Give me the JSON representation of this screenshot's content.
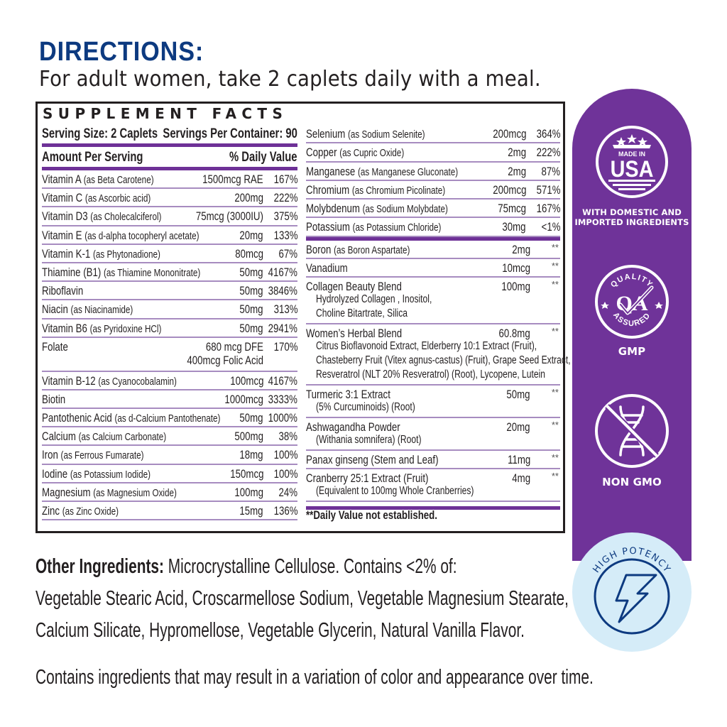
{
  "directions": {
    "title": "DIRECTIONS:",
    "text": "For adult women, take 2 caplets daily with a meal."
  },
  "supplement_facts": {
    "title": "SUPPLEMENT FACTS",
    "serving_size": "Serving Size: 2 Caplets",
    "servings_per_container": "Servings Per Container: 90",
    "amount_per_serving_label": "Amount Per Serving",
    "daily_value_label": "% Daily Value",
    "left_column": [
      {
        "name": "Vitamin A",
        "source": "(as Beta Carotene)",
        "amount": "1500mcg RAE",
        "dv": "167%"
      },
      {
        "name": "Vitamin C",
        "source": "(as Ascorbic acid)",
        "amount": "200mg",
        "dv": "222%"
      },
      {
        "name": "Vitamin D3",
        "source": "(as Cholecalciferol)",
        "amount": "75mcg (3000IU)",
        "dv": "375%"
      },
      {
        "name": "Vitamin E",
        "source": "(as d-alpha tocopheryl acetate)",
        "amount": "20mg",
        "dv": "133%"
      },
      {
        "name": "Vitamin K-1",
        "source": "(as Phytonadione)",
        "amount": "80mcg",
        "dv": "67%"
      },
      {
        "name": "Thiamine (B1)",
        "source": "(as Thiamine Mononitrate)",
        "amount": "50mg",
        "dv": "4167%"
      },
      {
        "name": "Riboflavin",
        "source": "",
        "amount": "50mg",
        "dv": "3846%"
      },
      {
        "name": "Niacin",
        "source": "(as Niacinamide)",
        "amount": "50mg",
        "dv": "313%"
      },
      {
        "name": "Vitamin B6",
        "source": "(as Pyridoxine HCl)",
        "amount": "50mg",
        "dv": "2941%"
      },
      {
        "name": "Folate",
        "source": "",
        "amount": "680 mcg DFE",
        "amount2": "400mcg Folic Acid",
        "dv": "170%"
      },
      {
        "name": "Vitamin B-12",
        "source": "(as Cyanocobalamin)",
        "amount": "100mcg",
        "dv": "4167%"
      },
      {
        "name": "Biotin",
        "source": "",
        "amount": "1000mcg",
        "dv": "3333%"
      },
      {
        "name": "Pantothenic Acid",
        "source": "(as d-Calcium Pantothenate)",
        "amount": "50mg",
        "dv": "1000%"
      },
      {
        "name": "Calcium",
        "source": "(as Calcium Carbonate)",
        "amount": "500mg",
        "dv": "38%"
      },
      {
        "name": "Iron",
        "source": "(as Ferrous Fumarate)",
        "amount": "18mg",
        "dv": "100%"
      },
      {
        "name": "Iodine",
        "source": "(as Potassium Iodide)",
        "amount": "150mcg",
        "dv": "100%"
      },
      {
        "name": "Magnesium",
        "source": "(as Magnesium Oxide)",
        "amount": "100mg",
        "dv": "24%"
      },
      {
        "name": "Zinc",
        "source": "(as Zinc Oxide)",
        "amount": "15mg",
        "dv": "136%"
      }
    ],
    "right_column": [
      {
        "name": "Selenium",
        "source": "(as Sodium Selenite)",
        "amount": "200mcg",
        "dv": "364%"
      },
      {
        "name": "Copper",
        "source": "(as Cupric Oxide)",
        "amount": "2mg",
        "dv": "222%"
      },
      {
        "name": "Manganese",
        "source": "(as Manganese Gluconate)",
        "amount": "2mg",
        "dv": "87%"
      },
      {
        "name": "Chromium",
        "source": "(as Chromium Picolinate)",
        "amount": "200mcg",
        "dv": "571%"
      },
      {
        "name": "Molybdenum",
        "source": "(as Sodium Molybdate)",
        "amount": "75mcg",
        "dv": "167%"
      },
      {
        "name": "Potassium",
        "source": "(as Potassium Chloride)",
        "amount": "30mg",
        "dv": "<1%"
      }
    ],
    "no_dv_items": [
      {
        "name": "Boron",
        "source": "(as Boron Aspartate)",
        "amount": "2mg",
        "dv": "**"
      },
      {
        "name": "Vanadium",
        "source": "",
        "amount": "10mcg",
        "dv": "**"
      },
      {
        "name": "Collagen Beauty Blend",
        "amount": "100mg",
        "dv": "**",
        "sub": [
          "Hydrolyzed Collagen , Inositol,",
          "Choline Bitartrate, Silica"
        ]
      },
      {
        "name": "Women’s Herbal Blend",
        "amount": "60.8mg",
        "dv": "**",
        "sub": [
          "Citrus Bioflavonoid Extract, Elderberry 10:1 Extract (Fruit),",
          "Chasteberry Fruit (Vitex agnus-castus) (Fruit), Grape Seed Extract,",
          "Resveratrol (NLT 20% Resveratrol) (Root), Lycopene, Lutein"
        ]
      },
      {
        "name": "Turmeric 3:1 Extract",
        "amount": "50mg",
        "dv": "**",
        "sub": [
          "(5% Curcuminoids) (Root)"
        ]
      },
      {
        "name": "Ashwagandha Powder",
        "amount": "20mg",
        "dv": "**",
        "sub": [
          "(Withania somnifera) (Root)"
        ]
      },
      {
        "name": "Panax ginseng (Stem and Leaf)",
        "amount": "11mg",
        "dv": "**"
      },
      {
        "name": "Cranberry 25:1 Extract (Fruit)",
        "amount": "4mg",
        "dv": "**",
        "sub": [
          "(Equivalent to 100mg Whole Cranberries)"
        ]
      }
    ],
    "footnote": "**Daily Value not established."
  },
  "badges": {
    "usa": {
      "top": "MADE IN",
      "main": "USA",
      "label1": "WITH DOMESTIC AND",
      "label2": "IMPORTED INGREDIENTS",
      "icon": "made-in-usa-icon"
    },
    "gmp": {
      "ring_top": "QUALITY",
      "ring_bottom": "ASSURED",
      "mark": "QA",
      "label": "GMP",
      "icon": "quality-assured-icon"
    },
    "nongmo": {
      "label": "NON GMO",
      "icon": "no-dna-icon"
    },
    "potency": {
      "label": "HIGH POTENCY",
      "icon": "lightning-bolt-icon"
    }
  },
  "other_ingredients": {
    "label": "Other Ingredients:",
    "line1": "Microcrystalline Cellulose. Contains <2% of:",
    "line2": "Vegetable Stearic Acid, Croscarmellose Sodium, Vegetable Magnesium Stearate,",
    "line3": "Calcium Silicate, Hypromellose, Vegetable Glycerin, Natural Vanilla Flavor."
  },
  "contains_note": "Contains ingredients that may result in a variation of color and appearance over time.",
  "colors": {
    "directions_blue": "#0d3a80",
    "panel_purple": "#6f3399",
    "rule_purple": "#6e3197",
    "potency_bg": "#d5ecf8",
    "potency_ink": "#0d3a80"
  }
}
